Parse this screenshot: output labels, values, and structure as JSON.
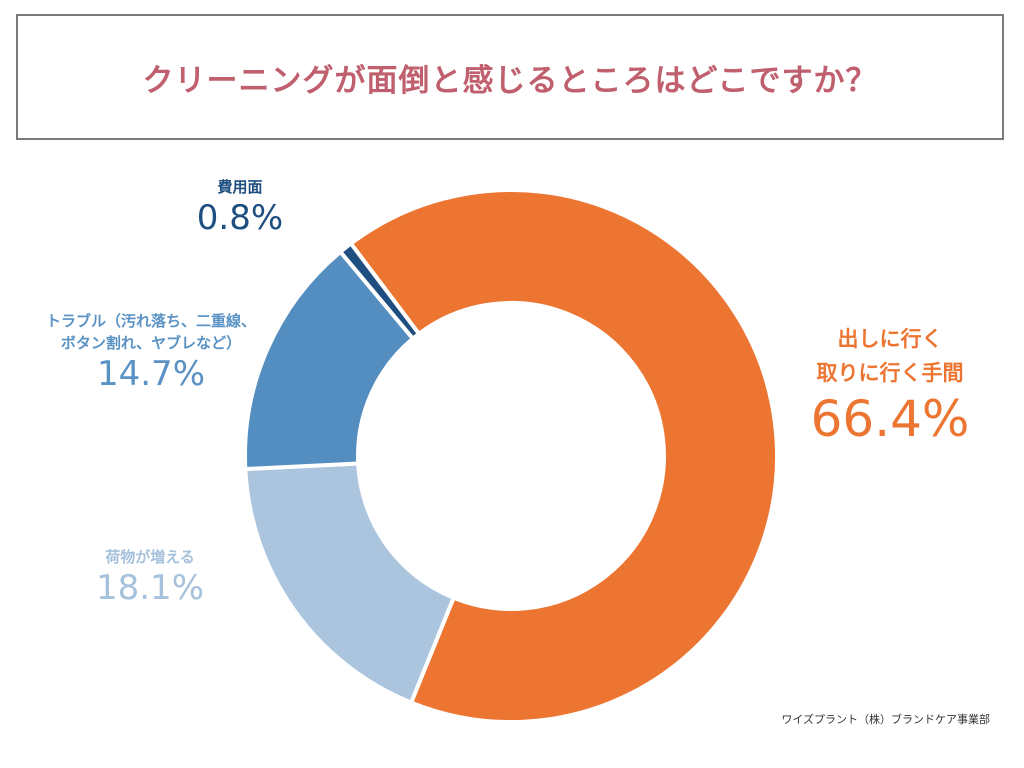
{
  "title": "クリーニングが面倒と感じるところはどこですか？",
  "credit": "ワイズプラント（株）ブランドケア事業部",
  "chart_data": {
    "type": "pie",
    "variant": "donut",
    "title": "クリーニングが面倒と感じるところはどこですか？",
    "series": [
      {
        "name": "出しに行く取りに行く手間",
        "label_lines": [
          "出しに行く",
          "取りに行く手間"
        ],
        "value": 66.4,
        "display": "66.4%",
        "color": "#ed7532"
      },
      {
        "name": "荷物が増える",
        "label_lines": [
          "荷物が増える"
        ],
        "value": 18.1,
        "display": "18.1%",
        "color": "#abc5df"
      },
      {
        "name": "トラブル（汚れ落ち、二重線、ボタン割れ、ヤブレなど）",
        "label_lines": [
          "トラブル（汚れ落ち、二重線、",
          "ボタン割れ、ヤブレなど）"
        ],
        "value": 14.7,
        "display": "14.7%",
        "color": "#548dbf"
      },
      {
        "name": "費用面",
        "label_lines": [
          "費用面"
        ],
        "value": 0.8,
        "display": "0.8%",
        "color": "#1f4e80"
      }
    ],
    "start_angle_deg": 323,
    "direction": "clockwise",
    "legend": "none"
  }
}
